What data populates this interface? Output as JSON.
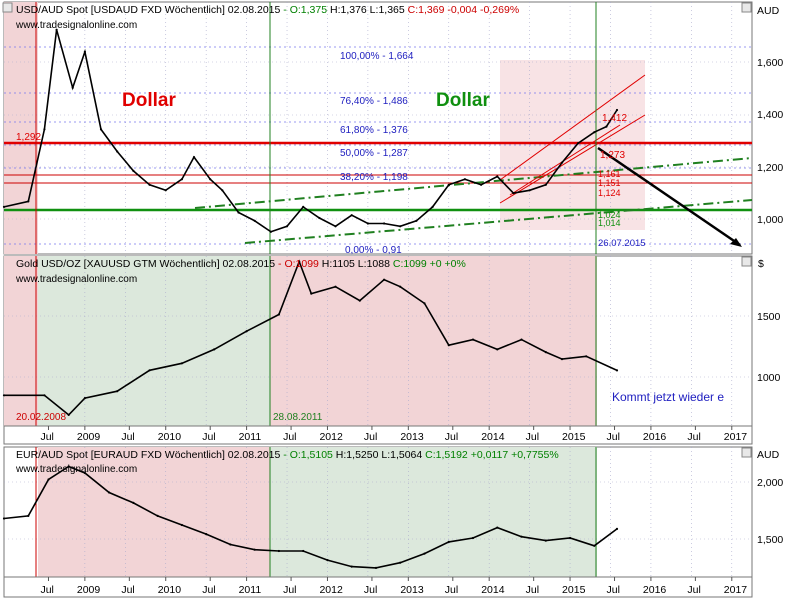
{
  "panel1": {
    "header_symbol": "USD/AUD Spot [USDAUD FXD  Wöchentlich] 02.08.2015",
    "header_values": [
      {
        "text": " - O:1,375",
        "color": "#008000"
      },
      {
        "text": " H:1,376",
        "color": "#000000"
      },
      {
        "text": " L:1,365",
        "color": "#000000"
      },
      {
        "text": " C:1,369",
        "color": "#cc0000"
      },
      {
        "text": " -0,004",
        "color": "#cc0000"
      },
      {
        "text": " -0,269%",
        "color": "#cc0000"
      }
    ],
    "source": "www.tradesignalonline.com",
    "unit": "AUD",
    "yticks": [
      "1,600",
      "1,400",
      "1,200",
      "1,000"
    ],
    "label_dollar_left": "Dollar",
    "label_dollar_right": "Dollar",
    "fib_levels": [
      "100,00% - 1,664",
      "76,40% - 1,486",
      "61,80% - 1,376",
      "50,00% - 1,287",
      "38,20% - 1,198",
      "0,00% - 0,91"
    ],
    "level_1292": "1,292",
    "level_1412": "1,412",
    "level_1273": "1,273",
    "right_small_labels": [
      "1,161",
      "1,151",
      "1,124",
      "1,024",
      "1,014"
    ],
    "date_label": "26.07.2015"
  },
  "panel2": {
    "header_symbol": "Gold USD/OZ [XAUUSD GTM  Wöchentlich] 02.08.2015",
    "header_values": [
      {
        "text": " - O:1099",
        "color": "#cc0000"
      },
      {
        "text": " H:1105",
        "color": "#000000"
      },
      {
        "text": " L:1088",
        "color": "#000000"
      },
      {
        "text": " C:1099",
        "color": "#008000"
      },
      {
        "text": " +0",
        "color": "#008000"
      },
      {
        "text": " +0%",
        "color": "#008000"
      }
    ],
    "source": "www.tradesignalonline.com",
    "unit": "$",
    "yticks": [
      "1500",
      "1000"
    ],
    "date_left": "20.02.2008",
    "date_mid": "28.08.2011",
    "note": "Kommt jetzt wieder e"
  },
  "panel3": {
    "header_symbol": "EUR/AUD Spot [EURAUD FXD  Wöchentlich] 02.08.2015",
    "header_values": [
      {
        "text": " - O:1,5105",
        "color": "#008000"
      },
      {
        "text": " H:1,5250",
        "color": "#000000"
      },
      {
        "text": " L:1,5064",
        "color": "#000000"
      },
      {
        "text": " C:1,5192",
        "color": "#008000"
      },
      {
        "text": " +0,0117",
        "color": "#008000"
      },
      {
        "text": " +0,7755%",
        "color": "#008000"
      }
    ],
    "source": "www.tradesignalonline.com",
    "unit": "AUD",
    "yticks": [
      "2,000",
      "1,500"
    ]
  },
  "xaxis_labels": [
    "Jul",
    "2009",
    "Jul",
    "2010",
    "Jul",
    "2011",
    "Jul",
    "2012",
    "Jul",
    "2013",
    "Jul",
    "2014",
    "Jul",
    "2015",
    "Jul",
    "2016",
    "Jul",
    "2017"
  ],
  "chart_data": [
    {
      "type": "line",
      "title": "USD/AUD Spot [USDAUD FXD  Wöchentlich] 02.08.2015",
      "ylabel": "AUD",
      "ylim": [
        0.85,
        1.76
      ],
      "x": [
        2008.0,
        2008.3,
        2008.5,
        2008.65,
        2008.85,
        2009.0,
        2009.2,
        2009.4,
        2009.6,
        2009.8,
        2010.0,
        2010.2,
        2010.35,
        2010.55,
        2010.7,
        2010.9,
        2011.1,
        2011.3,
        2011.5,
        2011.7,
        2011.9,
        2012.1,
        2012.3,
        2012.5,
        2012.7,
        2012.9,
        2013.1,
        2013.3,
        2013.5,
        2013.7,
        2013.9,
        2014.1,
        2014.3,
        2014.5,
        2014.7,
        2014.9,
        2015.1,
        2015.3,
        2015.45,
        2015.58
      ],
      "y": [
        1.02,
        1.04,
        1.3,
        1.66,
        1.45,
        1.58,
        1.3,
        1.22,
        1.15,
        1.1,
        1.08,
        1.12,
        1.2,
        1.12,
        1.08,
        1.0,
        0.97,
        0.93,
        0.95,
        1.02,
        0.98,
        0.95,
        0.99,
        0.96,
        0.96,
        0.95,
        0.97,
        1.02,
        1.1,
        1.12,
        1.1,
        1.13,
        1.07,
        1.08,
        1.1,
        1.18,
        1.25,
        1.29,
        1.31,
        1.37
      ]
    },
    {
      "type": "line",
      "title": "Gold USD/OZ [XAUUSD GTM  Wöchentlich] 02.08.2015",
      "ylabel": "$",
      "ylim": [
        700,
        1920
      ],
      "x": [
        2008.0,
        2008.5,
        2008.8,
        2009.0,
        2009.4,
        2009.8,
        2010.2,
        2010.6,
        2011.0,
        2011.4,
        2011.65,
        2011.8,
        2012.1,
        2012.4,
        2012.7,
        2012.9,
        2013.2,
        2013.5,
        2013.8,
        2014.1,
        2014.4,
        2014.7,
        2014.9,
        2015.2,
        2015.58
      ],
      "y": [
        920,
        920,
        780,
        900,
        950,
        1100,
        1150,
        1250,
        1380,
        1500,
        1880,
        1650,
        1700,
        1600,
        1750,
        1700,
        1580,
        1280,
        1320,
        1250,
        1320,
        1230,
        1180,
        1200,
        1099
      ]
    },
    {
      "type": "line",
      "title": "EUR/AUD Spot [EURAUD FXD  Wöchentlich] 02.08.2015",
      "ylabel": "AUD",
      "ylim": [
        1.15,
        2.15
      ],
      "x": [
        2008.0,
        2008.3,
        2008.55,
        2008.8,
        2009.0,
        2009.3,
        2009.6,
        2009.9,
        2010.2,
        2010.5,
        2010.8,
        2011.1,
        2011.4,
        2011.7,
        2012.0,
        2012.3,
        2012.6,
        2012.9,
        2013.2,
        2013.5,
        2013.8,
        2014.1,
        2014.4,
        2014.7,
        2015.0,
        2015.3,
        2015.58
      ],
      "y": [
        1.6,
        1.62,
        1.9,
        2.0,
        1.95,
        1.8,
        1.72,
        1.62,
        1.55,
        1.48,
        1.4,
        1.36,
        1.35,
        1.35,
        1.28,
        1.23,
        1.22,
        1.26,
        1.33,
        1.42,
        1.45,
        1.53,
        1.46,
        1.43,
        1.45,
        1.39,
        1.52
      ]
    }
  ]
}
